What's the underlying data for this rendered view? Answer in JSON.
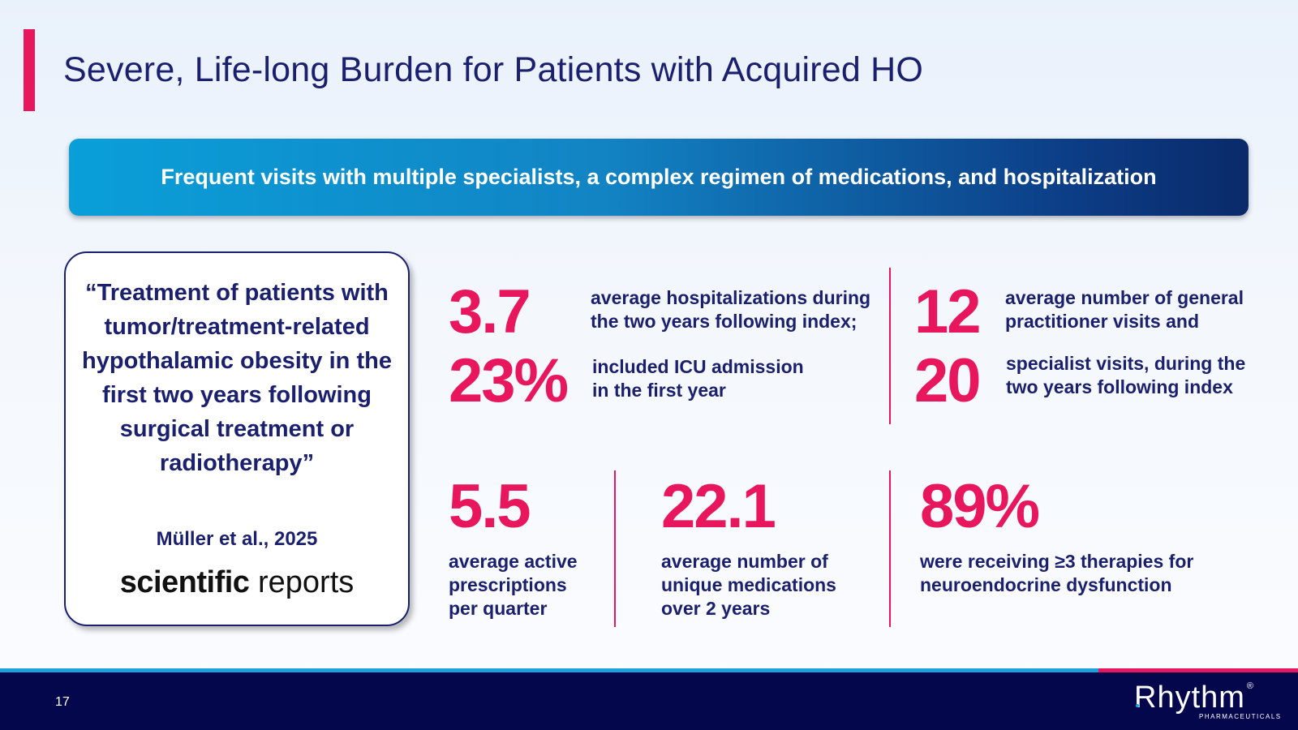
{
  "header": {
    "title": "Severe, Life-long Burden for Patients with Acquired HO"
  },
  "banner": {
    "text": "Frequent visits with multiple specialists, a complex regimen of medications, and hospitalization"
  },
  "quote": {
    "text": "“Treatment of patients with tumor/treatment-related hypothalamic obesity in the first two years following surgical treatment or radiotherapy”",
    "citation": "Müller et al., 2025",
    "journal_bold": "scientific",
    "journal_light": "reports"
  },
  "stats": {
    "hosp": {
      "value": "3.7",
      "desc": [
        "average hospitalizations during",
        "the two years following index;"
      ]
    },
    "icu": {
      "value": "23%",
      "desc": [
        "included ICU admission",
        "in the first year"
      ]
    },
    "gp": {
      "value": "12",
      "desc": [
        "average number of general",
        "practitioner visits and"
      ]
    },
    "spec": {
      "value": "20",
      "desc": [
        "specialist visits, during the",
        "two years following index"
      ]
    },
    "rx": {
      "value": "5.5",
      "desc": [
        "average active",
        "prescriptions",
        "per quarter"
      ]
    },
    "meds": {
      "value": "22.1",
      "desc": [
        "average number of",
        "unique medications",
        "over 2 years"
      ]
    },
    "ther": {
      "value": "89%",
      "desc": [
        "were receiving ≥3 therapies for",
        "neuroendocrine dysfunction"
      ]
    }
  },
  "footer": {
    "page_number": "17",
    "logo_text": "Rhythm",
    "logo_reg": "®",
    "logo_sub": "PHARMACEUTICALS"
  },
  "colors": {
    "accent": "#e8175d",
    "navy": "#1a1f6e",
    "footer": "#05074d",
    "banner_start": "#0a9fd9",
    "banner_end": "#0a2a6a"
  }
}
